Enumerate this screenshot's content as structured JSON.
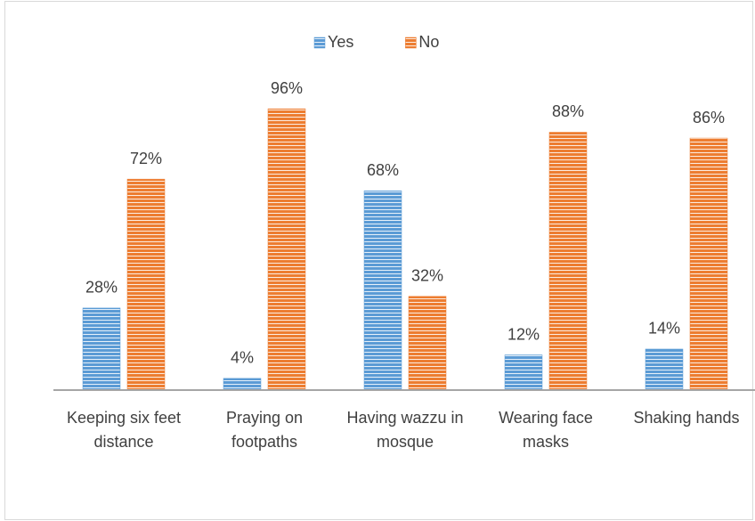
{
  "chart_data": {
    "type": "bar",
    "categories": [
      "Keeping six feet distance",
      "Praying on footpaths",
      "Having wazzu in mosque",
      "Wearing face masks",
      "Shaking hands"
    ],
    "series": [
      {
        "name": "Yes",
        "color": "#5b9bd5",
        "values": [
          28,
          4,
          68,
          12,
          14
        ],
        "value_labels": [
          "28%",
          "4%",
          "68%",
          "12%",
          "14%"
        ]
      },
      {
        "name": "No",
        "color": "#ed7d31",
        "values": [
          72,
          96,
          32,
          88,
          86
        ],
        "value_labels": [
          "72%",
          "96%",
          "32%",
          "88%",
          "86%"
        ]
      }
    ],
    "ylim": [
      0,
      100
    ],
    "legend": "top"
  }
}
